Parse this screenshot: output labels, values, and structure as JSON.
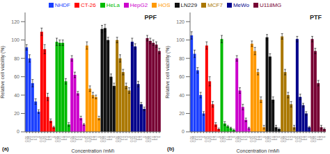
{
  "chart_data": [
    {
      "type": "bar",
      "title": "PPF",
      "xlabel": "Concentration (mM)",
      "ylabel": "Relative cell viability (%)",
      "annotations": [
        "(a)"
      ],
      "legend": "top",
      "categories": [
        "0.01",
        "0.05",
        "0.1",
        "0.5",
        "1"
      ],
      "ylim": [
        0,
        130
      ],
      "yticks": [
        0,
        20,
        40,
        60,
        80,
        100,
        120
      ],
      "series": [
        {
          "name": "NHDF",
          "color": "#1a3fff",
          "values": [
            92,
            80,
            53,
            33,
            22
          ],
          "errors": [
            3,
            4,
            4,
            3,
            2
          ]
        },
        {
          "name": "CT-26",
          "color": "#ff0000",
          "values": [
            109,
            90,
            38,
            12,
            5
          ],
          "errors": [
            4,
            5,
            4,
            2,
            1
          ]
        },
        {
          "name": "HeLa",
          "color": "#00bb00",
          "values": [
            98,
            97,
            97,
            55,
            8
          ],
          "errors": [
            4,
            3,
            3,
            3,
            2
          ]
        },
        {
          "name": "HepG2",
          "color": "#cc00cc",
          "values": [
            80,
            62,
            42,
            15,
            8
          ],
          "errors": [
            3,
            3,
            2,
            2,
            1
          ]
        },
        {
          "name": "HOS",
          "color": "#ff9900",
          "values": [
            94,
            47,
            40,
            38,
            15
          ],
          "errors": [
            4,
            3,
            3,
            2,
            2
          ]
        },
        {
          "name": "LN229",
          "color": "#111111",
          "values": [
            112,
            113,
            100,
            60,
            50
          ],
          "errors": [
            4,
            4,
            3,
            3,
            3
          ]
        },
        {
          "name": "MCF7",
          "color": "#aa7700",
          "values": [
            100,
            80,
            65,
            50,
            45
          ],
          "errors": [
            3,
            4,
            3,
            3,
            3
          ]
        },
        {
          "name": "MeWo",
          "color": "#00008b",
          "values": [
            98,
            93,
            52,
            30,
            25
          ],
          "errors": [
            4,
            3,
            3,
            2,
            2
          ]
        },
        {
          "name": "U118MG",
          "color": "#770033",
          "values": [
            102,
            99,
            97,
            95,
            88
          ],
          "errors": [
            3,
            3,
            3,
            3,
            3
          ]
        }
      ]
    },
    {
      "type": "bar",
      "title": "PTF",
      "xlabel": "Concentration (mM)",
      "ylabel": "Relative cell viability (%)",
      "annotations": [
        "(b)"
      ],
      "categories": [
        "0.01",
        "0.05",
        "0.1",
        "0.5",
        "1"
      ],
      "ylim": [
        0,
        130
      ],
      "yticks": [
        0,
        20,
        40,
        60,
        80,
        100,
        120
      ],
      "series": [
        {
          "name": "NHDF",
          "color": "#1a3fff",
          "values": [
            105,
            85,
            67,
            40,
            20
          ],
          "errors": [
            4,
            4,
            3,
            3,
            2
          ]
        },
        {
          "name": "CT-26",
          "color": "#ff0000",
          "values": [
            94,
            55,
            30,
            8,
            3
          ],
          "errors": [
            4,
            5,
            3,
            2,
            1
          ]
        },
        {
          "name": "HeLa",
          "color": "#00bb00",
          "values": [
            101,
            9,
            6,
            4,
            2
          ],
          "errors": [
            4,
            2,
            1,
            1,
            1
          ]
        },
        {
          "name": "HepG2",
          "color": "#cc00cc",
          "values": [
            80,
            45,
            27,
            13,
            4
          ],
          "errors": [
            3,
            3,
            3,
            2,
            1
          ]
        },
        {
          "name": "HOS",
          "color": "#ff9900",
          "values": [
            96,
            88,
            65,
            35,
            5
          ],
          "errors": [
            3,
            4,
            3,
            3,
            2
          ]
        },
        {
          "name": "LN229",
          "color": "#111111",
          "values": [
            103,
            82,
            35,
            5,
            3
          ],
          "errors": [
            3,
            3,
            3,
            2,
            1
          ]
        },
        {
          "name": "MCF7",
          "color": "#aa7700",
          "values": [
            104,
            65,
            40,
            30,
            5
          ],
          "errors": [
            3,
            3,
            3,
            3,
            2
          ]
        },
        {
          "name": "MeWo",
          "color": "#00008b",
          "values": [
            101,
            38,
            29,
            20,
            5
          ],
          "errors": [
            3,
            3,
            2,
            2,
            1
          ]
        },
        {
          "name": "U118MG",
          "color": "#770033",
          "values": [
            101,
            88,
            53,
            5,
            3
          ],
          "errors": [
            3,
            3,
            3,
            2,
            1
          ]
        }
      ]
    }
  ]
}
